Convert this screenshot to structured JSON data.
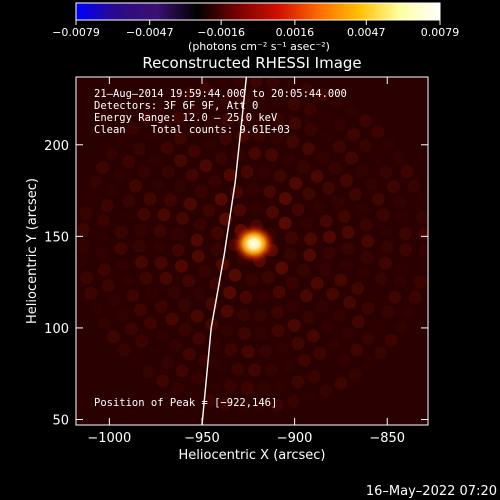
{
  "chart_data": {
    "type": "heatmap",
    "title": "Reconstructed RHESSI Image",
    "xlabel": "Heliocentric X (arcsec)",
    "ylabel": "Heliocentric Y (arcsec)",
    "xlim": [
      -1018,
      -828
    ],
    "ylim": [
      47,
      237
    ],
    "xticks": [
      {
        "value": -1000,
        "label": "−1000"
      },
      {
        "value": -950,
        "label": "−950"
      },
      {
        "value": -900,
        "label": "−900"
      },
      {
        "value": -850,
        "label": "−850"
      }
    ],
    "yticks": [
      {
        "value": 50,
        "label": "50"
      },
      {
        "value": 100,
        "label": "100"
      },
      {
        "value": 150,
        "label": "150"
      },
      {
        "value": 200,
        "label": "200"
      }
    ],
    "colorbar": {
      "min": -0.0079,
      "max": 0.0079,
      "ticks": [
        {
          "value": -0.0079,
          "label": "−0.0079"
        },
        {
          "value": -0.0047,
          "label": "−0.0047"
        },
        {
          "value": -0.0016,
          "label": "−0.0016"
        },
        {
          "value": 0.0016,
          "label": "0.0016"
        },
        {
          "value": 0.0047,
          "label": "0.0047"
        },
        {
          "value": 0.0079,
          "label": "0.0079"
        }
      ],
      "units": "(photons cm⁻² s⁻¹ asec⁻²)",
      "colors": [
        "#0000ff",
        "#2a0a8a",
        "#3a1070",
        "#000000",
        "#7a0000",
        "#d01000",
        "#ff6a00",
        "#ffc000",
        "#ffffa0",
        "#ffffff"
      ]
    },
    "annotations": [
      "21–Aug–2014 19:59:44.000 to 20:05:44.000",
      "Detectors: 3F 6F 9F, Att 0",
      "Energy Range: 12.0 – 25.0 keV",
      "Clean    Total counts: 9.61E+03"
    ],
    "peak": {
      "x": -922,
      "y": 146,
      "label": "Position of Peak = [−922,146]"
    },
    "limb_curve": [
      [
        -950,
        47
      ],
      [
        -945,
        100
      ],
      [
        -938,
        140
      ],
      [
        -932,
        180
      ],
      [
        -926,
        237
      ]
    ]
  },
  "footer_timestamp": "16–May–2022 07:20"
}
